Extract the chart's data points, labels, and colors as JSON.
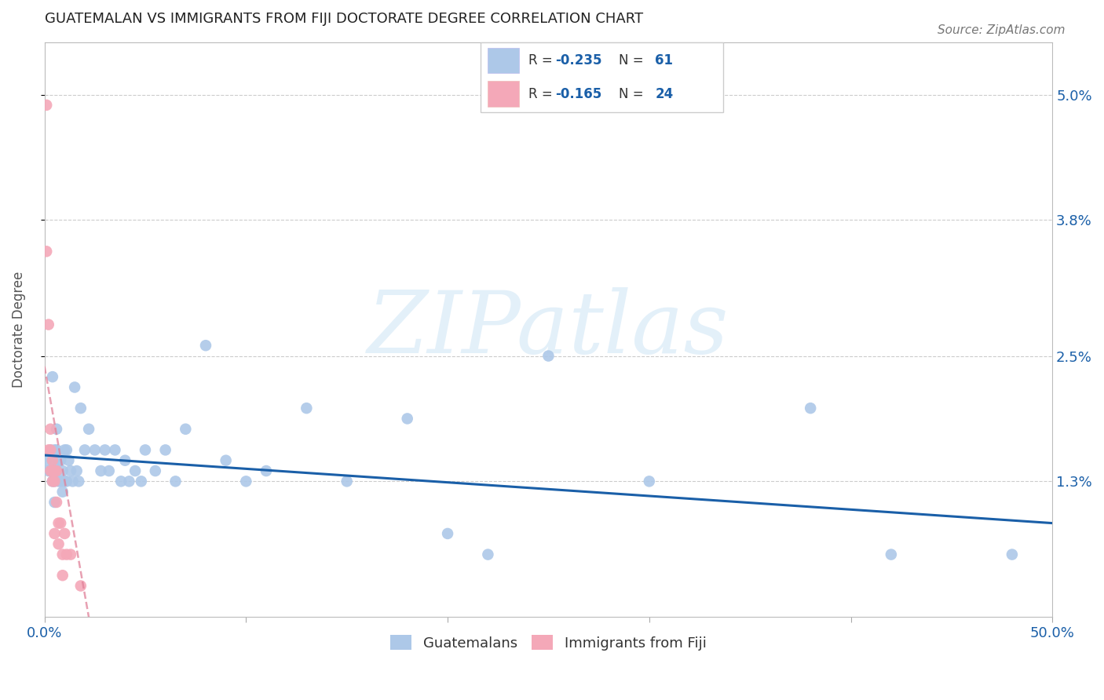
{
  "title": "GUATEMALAN VS IMMIGRANTS FROM FIJI DOCTORATE DEGREE CORRELATION CHART",
  "source": "Source: ZipAtlas.com",
  "ylabel": "Doctorate Degree",
  "watermark": "ZIPatlas",
  "xlim": [
    0.0,
    0.5
  ],
  "ylim": [
    0.0,
    0.055
  ],
  "blue_color": "#adc8e8",
  "pink_color": "#f4a8b8",
  "blue_line_color": "#1a5fa8",
  "pink_line_color": "#e08098",
  "blue_scatter_x": [
    0.001,
    0.002,
    0.003,
    0.003,
    0.004,
    0.004,
    0.004,
    0.005,
    0.005,
    0.005,
    0.006,
    0.006,
    0.006,
    0.007,
    0.007,
    0.008,
    0.008,
    0.009,
    0.009,
    0.01,
    0.01,
    0.011,
    0.011,
    0.012,
    0.013,
    0.014,
    0.015,
    0.016,
    0.017,
    0.018,
    0.02,
    0.022,
    0.025,
    0.028,
    0.03,
    0.032,
    0.035,
    0.038,
    0.04,
    0.042,
    0.045,
    0.048,
    0.05,
    0.055,
    0.06,
    0.065,
    0.07,
    0.08,
    0.09,
    0.1,
    0.11,
    0.13,
    0.15,
    0.18,
    0.2,
    0.22,
    0.25,
    0.3,
    0.38,
    0.42,
    0.48
  ],
  "blue_scatter_y": [
    0.015,
    0.014,
    0.016,
    0.014,
    0.023,
    0.015,
    0.013,
    0.016,
    0.013,
    0.011,
    0.018,
    0.016,
    0.014,
    0.015,
    0.013,
    0.015,
    0.013,
    0.014,
    0.012,
    0.016,
    0.013,
    0.016,
    0.013,
    0.015,
    0.014,
    0.013,
    0.022,
    0.014,
    0.013,
    0.02,
    0.016,
    0.018,
    0.016,
    0.014,
    0.016,
    0.014,
    0.016,
    0.013,
    0.015,
    0.013,
    0.014,
    0.013,
    0.016,
    0.014,
    0.016,
    0.013,
    0.018,
    0.026,
    0.015,
    0.013,
    0.014,
    0.02,
    0.013,
    0.019,
    0.008,
    0.006,
    0.025,
    0.013,
    0.02,
    0.006,
    0.006
  ],
  "pink_scatter_x": [
    0.001,
    0.001,
    0.002,
    0.002,
    0.003,
    0.003,
    0.003,
    0.004,
    0.004,
    0.004,
    0.005,
    0.005,
    0.005,
    0.006,
    0.006,
    0.007,
    0.007,
    0.008,
    0.009,
    0.009,
    0.01,
    0.011,
    0.013,
    0.018
  ],
  "pink_scatter_y": [
    0.049,
    0.035,
    0.028,
    0.016,
    0.018,
    0.016,
    0.014,
    0.015,
    0.014,
    0.013,
    0.014,
    0.013,
    0.008,
    0.014,
    0.011,
    0.009,
    0.007,
    0.009,
    0.006,
    0.004,
    0.008,
    0.006,
    0.006,
    0.003
  ],
  "blue_trend_x": [
    0.0,
    0.5
  ],
  "blue_trend_y": [
    0.0155,
    0.009
  ],
  "pink_trend_x": [
    0.0,
    0.022
  ],
  "pink_trend_y": [
    0.024,
    0.0
  ],
  "ytick_positions": [
    0.013,
    0.025,
    0.038,
    0.05
  ],
  "ytick_labels": [
    "1.3%",
    "2.5%",
    "3.8%",
    "5.0%"
  ],
  "xtick_positions": [
    0.0,
    0.1,
    0.2,
    0.3,
    0.4,
    0.5
  ],
  "xtick_labels": [
    "0.0%",
    "",
    "",
    "",
    "",
    "50.0%"
  ]
}
